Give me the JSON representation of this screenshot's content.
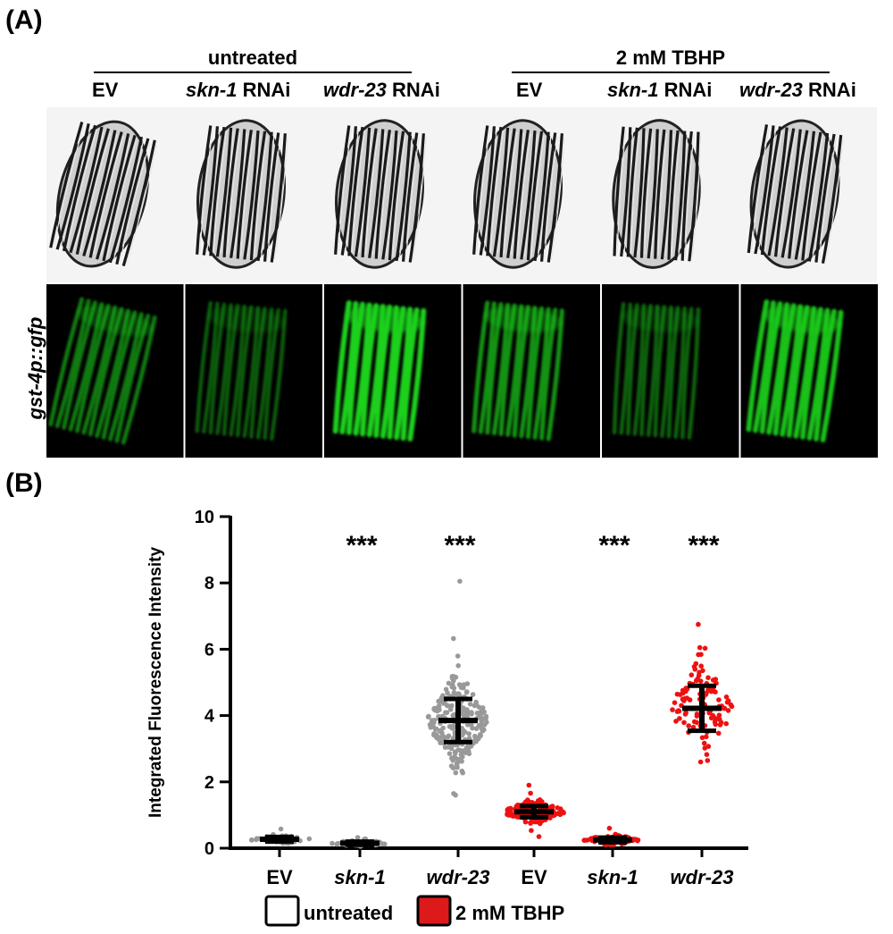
{
  "figure": {
    "panel_a_label": "(A)",
    "panel_b_label": "(B)",
    "groups": [
      {
        "title": "untreated"
      },
      {
        "title": "2 mM TBHP"
      }
    ],
    "conditions": [
      {
        "gene": "",
        "suffix": "EV"
      },
      {
        "gene": "skn-1",
        "suffix": " RNAi"
      },
      {
        "gene": "wdr-23",
        "suffix": " RNAi"
      },
      {
        "gene": "",
        "suffix": "EV"
      },
      {
        "gene": "skn-1",
        "suffix": " RNAi"
      },
      {
        "gene": "wdr-23",
        "suffix": " RNAi"
      }
    ],
    "gfp_row_label": "gst-4p::gfp",
    "gfp_brightness": [
      0.45,
      0.25,
      1.0,
      0.6,
      0.3,
      0.9
    ],
    "colors": {
      "gfp": "#1fd11f",
      "untreated": "#999999",
      "tbhp": "#ee1111"
    }
  },
  "chart_data": {
    "type": "scatter",
    "ylabel": "Integrated Fluorescence Intensity",
    "ylim": [
      0,
      10
    ],
    "yticks": [
      0,
      2,
      4,
      6,
      8,
      10
    ],
    "categories": [
      "EV",
      "skn-1",
      "wdr-23",
      "EV",
      "skn-1",
      "wdr-23"
    ],
    "italic_categories": [
      false,
      true,
      true,
      false,
      true,
      true
    ],
    "significance": [
      "",
      "***",
      "***",
      "",
      "***",
      "***"
    ],
    "series": [
      {
        "name": "untreated",
        "color": "#999999",
        "groups": [
          {
            "category_index": 0,
            "mean": 0.27,
            "sd": 0.07,
            "min": 0.15,
            "max": 0.58,
            "n": 60
          },
          {
            "category_index": 1,
            "mean": 0.15,
            "sd": 0.05,
            "min": 0.06,
            "max": 0.32,
            "n": 60
          },
          {
            "category_index": 2,
            "mean": 3.85,
            "sd": 0.65,
            "min": 1.6,
            "max": 8.05,
            "n": 260
          }
        ]
      },
      {
        "name": "2 mM TBHP",
        "color": "#ee1111",
        "groups": [
          {
            "category_index": 3,
            "mean": 1.1,
            "sd": 0.17,
            "min": 0.35,
            "max": 1.9,
            "n": 180
          },
          {
            "category_index": 4,
            "mean": 0.25,
            "sd": 0.07,
            "min": 0.1,
            "max": 0.6,
            "n": 90
          },
          {
            "category_index": 5,
            "mean": 4.22,
            "sd": 0.68,
            "min": 2.6,
            "max": 6.75,
            "n": 110
          }
        ]
      }
    ],
    "legend": {
      "placement": "bottom",
      "items": [
        {
          "label": "untreated",
          "swatch": "#ffffff"
        },
        {
          "label": "2 mM TBHP",
          "swatch": "#dd1a1a"
        }
      ]
    }
  }
}
